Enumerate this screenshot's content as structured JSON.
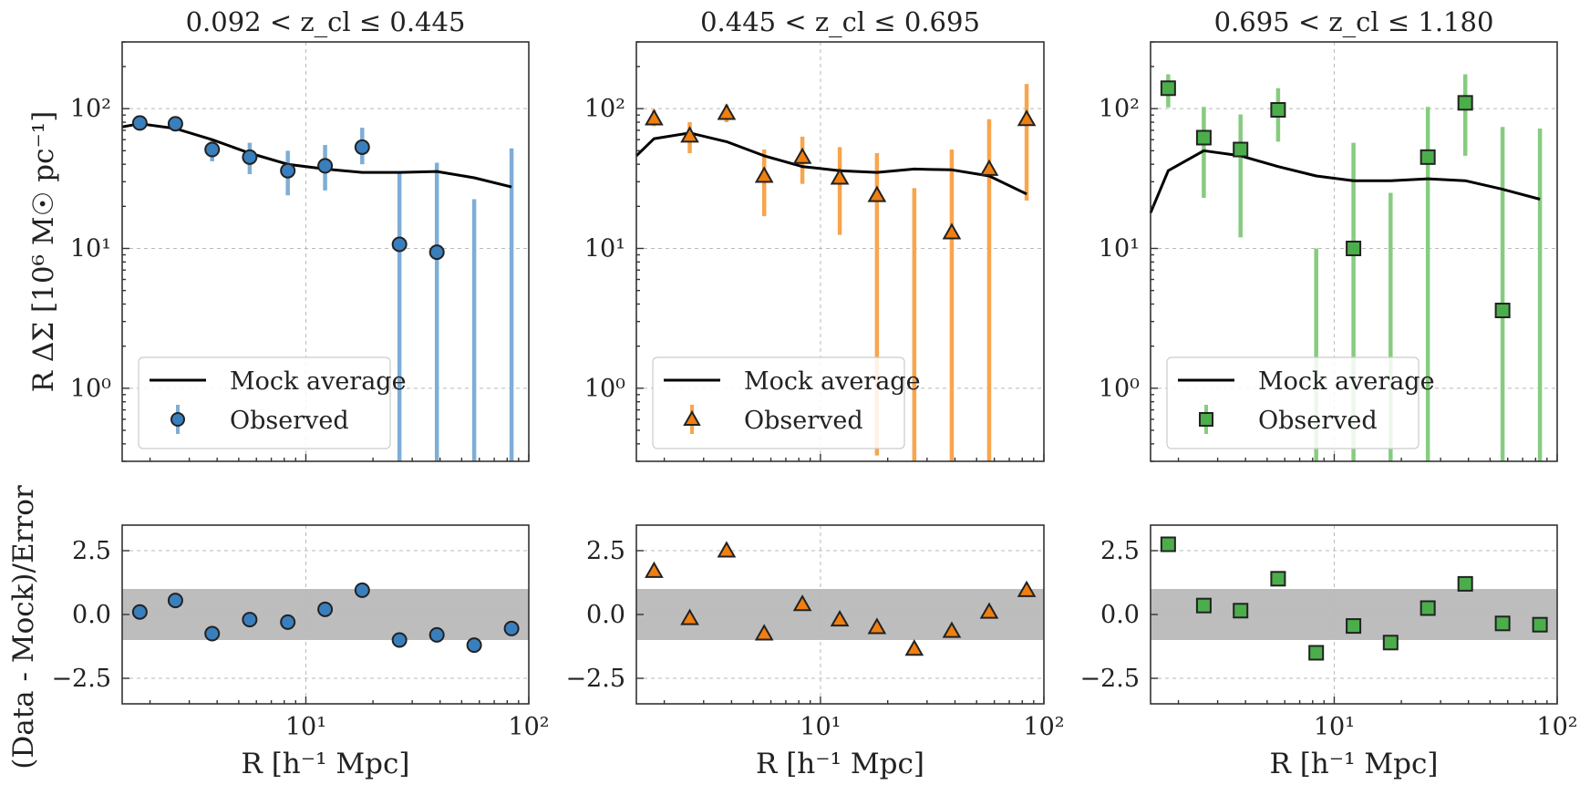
{
  "figure": {
    "ylabel_top": "R ΔΣ [10⁶ M☉ pc⁻¹]",
    "ylabel_bottom": "(Data - Mock)/Error",
    "xlabel": "R [h⁻¹ Mpc]",
    "legend": {
      "mock": "Mock average",
      "observed": "Observed"
    }
  },
  "chart_data": [
    {
      "type": "line",
      "title": "0.092 < z_cl ≤ 0.445",
      "xscale": "log",
      "yscale": "log",
      "xlim": [
        1.5,
        100
      ],
      "ylim_top": [
        0.3,
        300
      ],
      "ylim_bottom": [
        -3.5,
        3.5
      ],
      "grid": true,
      "legend_position": "lower-left",
      "color": "#3a7fbd",
      "errorbar_color": "#7eaed6",
      "marker": "circle",
      "x_ticks": [
        "10¹",
        "10²"
      ],
      "y_ticks_top": [
        "10⁰",
        "10¹",
        "10²"
      ],
      "y_ticks_bottom": [
        "2.5",
        "0.0",
        "−2.5"
      ],
      "mock": {
        "x": [
          1.5,
          1.8,
          2.6,
          3.8,
          5.6,
          8.3,
          12.2,
          17.9,
          26.3,
          38.7,
          56.9,
          83.7
        ],
        "y": [
          74,
          78,
          72,
          60,
          48,
          40,
          37,
          35,
          35,
          35.5,
          32,
          27.5
        ]
      },
      "observed": {
        "x": [
          1.8,
          2.6,
          3.8,
          5.6,
          8.3,
          12.2,
          17.9,
          26.3,
          38.7,
          56.9,
          83.7
        ],
        "y": [
          79,
          78,
          51,
          45,
          36,
          39,
          53,
          10.7,
          9.4,
          null,
          null
        ],
        "yerr_low": [
          76,
          74,
          42,
          34,
          24,
          26,
          40,
          0.3,
          0.3,
          0.3,
          0.3
        ],
        "yerr_high": [
          82,
          82,
          61,
          57,
          50,
          55,
          73,
          35,
          41,
          22.5,
          52
        ]
      },
      "residuals": {
        "x": [
          1.8,
          2.6,
          3.8,
          5.6,
          8.3,
          12.2,
          17.9,
          26.3,
          38.7,
          56.9,
          83.7
        ],
        "y": [
          0.1,
          0.55,
          -0.75,
          -0.2,
          -0.3,
          0.2,
          0.95,
          -1.0,
          -0.8,
          -1.2,
          -0.55
        ]
      }
    },
    {
      "type": "line",
      "title": "0.445 < z_cl ≤ 0.695",
      "xscale": "log",
      "yscale": "log",
      "xlim": [
        1.5,
        100
      ],
      "ylim_top": [
        0.3,
        300
      ],
      "ylim_bottom": [
        -3.5,
        3.5
      ],
      "grid": true,
      "legend_position": "lower-left",
      "color": "#f07f10",
      "errorbar_color": "#f7a54e",
      "marker": "triangle",
      "x_ticks": [
        "10¹",
        "10²"
      ],
      "y_ticks_top": [
        "10⁰",
        "10¹",
        "10²"
      ],
      "y_ticks_bottom": [
        "2.5",
        "0.0",
        "−2.5"
      ],
      "mock": {
        "x": [
          1.5,
          1.8,
          2.6,
          3.8,
          5.6,
          8.3,
          12.2,
          17.9,
          26.3,
          38.7,
          56.9,
          83.7
        ],
        "y": [
          46,
          61,
          67,
          58,
          46,
          38.5,
          36,
          35,
          37,
          36.5,
          33,
          24.5
        ]
      },
      "observed": {
        "x": [
          1.8,
          2.6,
          3.8,
          5.6,
          8.3,
          12.2,
          17.9,
          26.3,
          38.7,
          56.9,
          83.7
        ],
        "y": [
          85,
          64,
          93,
          33,
          45,
          32,
          24,
          null,
          13,
          37,
          84
        ],
        "yerr_low": [
          75,
          48,
          80,
          17,
          29,
          12.5,
          0.33,
          0.3,
          0.3,
          0.3,
          22
        ],
        "yerr_high": [
          98,
          80,
          107,
          51,
          63,
          53,
          48,
          27,
          51,
          84,
          150
        ]
      },
      "residuals": {
        "x": [
          1.8,
          2.6,
          3.8,
          5.6,
          8.3,
          12.2,
          17.9,
          26.3,
          38.7,
          56.9,
          83.7
        ],
        "y": [
          1.7,
          -0.15,
          2.5,
          -0.75,
          0.4,
          -0.2,
          -0.5,
          -1.35,
          -0.65,
          0.1,
          0.95
        ]
      }
    },
    {
      "type": "line",
      "title": "0.695 < z_cl ≤ 1.180",
      "xscale": "log",
      "yscale": "log",
      "xlim": [
        1.5,
        100
      ],
      "ylim_top": [
        0.3,
        300
      ],
      "ylim_bottom": [
        -3.5,
        3.5
      ],
      "grid": true,
      "legend_position": "lower-left",
      "color": "#4bae4b",
      "errorbar_color": "#86cc80",
      "marker": "square",
      "x_ticks": [
        "10¹",
        "10²"
      ],
      "y_ticks_top": [
        "10⁰",
        "10¹",
        "10²"
      ],
      "y_ticks_bottom": [
        "2.5",
        "0.0",
        "−2.5"
      ],
      "mock": {
        "x": [
          1.5,
          1.8,
          2.6,
          3.8,
          5.6,
          8.3,
          12.2,
          17.9,
          26.3,
          38.7,
          56.9,
          83.7
        ],
        "y": [
          18,
          36,
          50,
          46,
          38.5,
          33,
          30.5,
          30.5,
          31.5,
          30.5,
          26.5,
          22.5
        ]
      },
      "observed": {
        "x": [
          1.8,
          2.6,
          3.8,
          5.6,
          8.3,
          12.2,
          17.9,
          26.3,
          38.7,
          56.9,
          83.7
        ],
        "y": [
          140,
          62,
          51,
          98,
          null,
          10,
          null,
          45,
          110,
          3.6,
          null
        ],
        "yerr_low": [
          102,
          23,
          12,
          58,
          0.3,
          0.3,
          0.3,
          0.3,
          46,
          0.3,
          0.3
        ],
        "yerr_high": [
          176,
          103,
          91,
          140,
          10,
          57,
          25,
          103,
          176,
          74,
          72
        ]
      },
      "residuals": {
        "x": [
          1.8,
          2.6,
          3.8,
          5.6,
          8.3,
          12.2,
          17.9,
          26.3,
          38.7,
          56.9,
          83.7
        ],
        "y": [
          2.75,
          0.35,
          0.15,
          1.4,
          -1.5,
          -0.45,
          -1.1,
          0.25,
          1.2,
          -0.35,
          -0.4
        ]
      }
    }
  ]
}
